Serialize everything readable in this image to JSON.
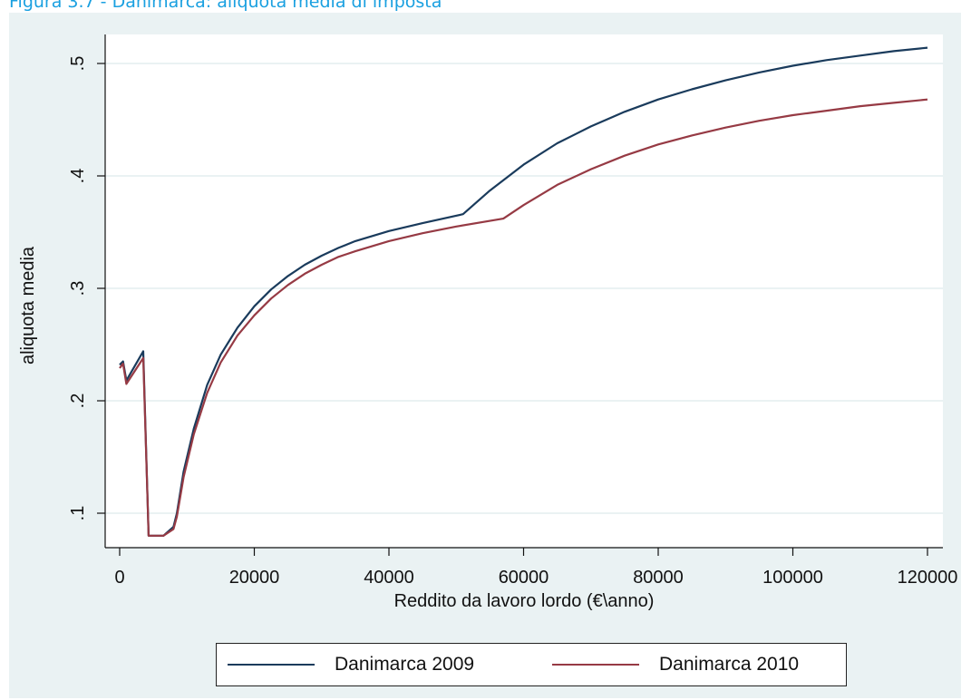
{
  "caption": "Figura 3.7 - Danimarca: aliquota media di imposta",
  "colors": {
    "background": "#eaf2f3",
    "plot_bg": "#ffffff",
    "grid": "#eaf2f3",
    "caption": "#1aa0e0"
  },
  "chart_data": {
    "type": "line",
    "title": "",
    "xlabel": "Reddito da lavoro lordo (€\\anno)",
    "ylabel": "aliquota media",
    "xlim": [
      0,
      120000
    ],
    "ylim": [
      0.07,
      0.55
    ],
    "x_ticks": [
      0,
      20000,
      40000,
      60000,
      80000,
      100000,
      120000
    ],
    "x_tick_labels": [
      "0",
      "20000",
      "40000",
      "60000",
      "80000",
      "100000",
      "120000"
    ],
    "y_ticks": [
      0.1,
      0.2,
      0.3,
      0.4,
      0.5
    ],
    "y_tick_labels": [
      ".1",
      ".2",
      ".3",
      ".4",
      ".5"
    ],
    "grid": "horizontal",
    "legend_position": "bottom",
    "series": [
      {
        "name": "Danimarca 2009",
        "color": "#1a3b5c",
        "x": [
          0,
          500,
          1000,
          3500,
          4200,
          4300,
          6500,
          8000,
          8500,
          9500,
          11000,
          13000,
          15000,
          17500,
          20000,
          22500,
          25000,
          27500,
          30000,
          32500,
          35000,
          40000,
          45000,
          51000,
          55000,
          60000,
          65000,
          70000,
          75000,
          80000,
          85000,
          90000,
          95000,
          100000,
          105000,
          110000,
          115000,
          120000
        ],
        "y": [
          0.232,
          0.235,
          0.218,
          0.244,
          0.1,
          0.08,
          0.08,
          0.088,
          0.1,
          0.137,
          0.175,
          0.214,
          0.241,
          0.265,
          0.284,
          0.299,
          0.311,
          0.321,
          0.329,
          0.336,
          0.342,
          0.351,
          0.358,
          0.366,
          0.387,
          0.41,
          0.429,
          0.444,
          0.457,
          0.468,
          0.477,
          0.485,
          0.492,
          0.498,
          0.503,
          0.507,
          0.511,
          0.514
        ]
      },
      {
        "name": "Danimarca 2010",
        "color": "#963a44",
        "x": [
          0,
          500,
          1000,
          3500,
          4200,
          4300,
          6500,
          8000,
          8500,
          9500,
          11000,
          13000,
          15000,
          17500,
          20000,
          22500,
          25000,
          27500,
          30000,
          32500,
          35000,
          40000,
          45000,
          50000,
          57000,
          60000,
          65000,
          70000,
          75000,
          80000,
          85000,
          90000,
          95000,
          100000,
          105000,
          110000,
          115000,
          120000
        ],
        "y": [
          0.229,
          0.233,
          0.215,
          0.238,
          0.1,
          0.08,
          0.08,
          0.086,
          0.097,
          0.132,
          0.17,
          0.207,
          0.234,
          0.258,
          0.276,
          0.291,
          0.303,
          0.313,
          0.321,
          0.328,
          0.333,
          0.342,
          0.349,
          0.355,
          0.362,
          0.374,
          0.392,
          0.406,
          0.418,
          0.428,
          0.436,
          0.443,
          0.449,
          0.454,
          0.458,
          0.462,
          0.465,
          0.468
        ]
      }
    ]
  }
}
